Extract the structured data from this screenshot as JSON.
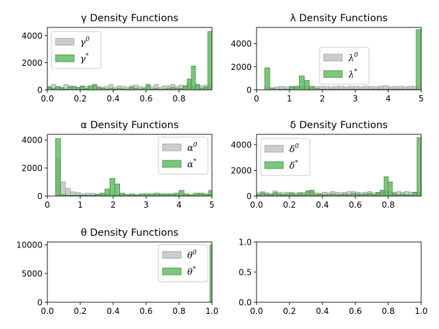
{
  "chart_data": [
    {
      "type": "bar",
      "greek": "γ",
      "title": "γ Density Functions",
      "xlim": [
        0,
        1
      ],
      "ylim": [
        0,
        4600
      ],
      "xticks": [
        0.0,
        0.2,
        0.4,
        0.6,
        0.8
      ],
      "xtick_labels": [
        "0.0",
        "0.2",
        "0.4",
        "0.6",
        "0.8"
      ],
      "yticks": [
        0,
        2000,
        4000
      ],
      "ytick_labels": [
        "0",
        "2000",
        "4000"
      ],
      "bin_width": 0.025,
      "legend_position": "upper-left",
      "series": [
        {
          "name": "γ0",
          "label_base": "γ",
          "label_sup": "0",
          "color": "#bfbfbf",
          "edge": "#a0a0a0",
          "x": [
            0.0,
            0.025,
            0.05,
            0.075,
            0.1,
            0.125,
            0.15,
            0.175,
            0.2,
            0.225,
            0.25,
            0.275,
            0.3,
            0.325,
            0.35,
            0.375,
            0.4,
            0.425,
            0.45,
            0.475,
            0.5,
            0.525,
            0.55,
            0.575,
            0.6,
            0.625,
            0.65,
            0.675,
            0.7,
            0.725,
            0.75,
            0.775,
            0.8,
            0.825,
            0.85,
            0.875,
            0.9,
            0.925,
            0.95,
            0.975
          ],
          "values": [
            250,
            400,
            250,
            200,
            400,
            300,
            250,
            200,
            300,
            250,
            200,
            300,
            250,
            200,
            250,
            400,
            200,
            300,
            250,
            200,
            300,
            350,
            250,
            200,
            300,
            250,
            400,
            200,
            300,
            300,
            400,
            250,
            350,
            300,
            450,
            300,
            400,
            300,
            350,
            300
          ]
        },
        {
          "name": "γ*",
          "label_base": "γ",
          "label_sup": "*",
          "color": "#5cb85c",
          "edge": "#3d8b3d",
          "x": [
            0.0,
            0.025,
            0.05,
            0.075,
            0.1,
            0.125,
            0.15,
            0.175,
            0.2,
            0.225,
            0.25,
            0.275,
            0.3,
            0.325,
            0.35,
            0.375,
            0.4,
            0.425,
            0.45,
            0.475,
            0.5,
            0.525,
            0.55,
            0.575,
            0.6,
            0.625,
            0.65,
            0.675,
            0.7,
            0.725,
            0.75,
            0.775,
            0.8,
            0.825,
            0.85,
            0.875,
            0.9,
            0.925,
            0.95,
            0.975
          ],
          "values": [
            200,
            100,
            250,
            150,
            50,
            200,
            250,
            150,
            250,
            100,
            300,
            400,
            150,
            100,
            50,
            100,
            50,
            100,
            50,
            50,
            200,
            100,
            50,
            100,
            400,
            50,
            100,
            50,
            50,
            100,
            150,
            100,
            100,
            300,
            800,
            1750,
            400,
            100,
            200,
            4300
          ]
        }
      ]
    },
    {
      "type": "bar",
      "greek": "λ",
      "title": "λ Density Functions",
      "xlim": [
        0,
        5
      ],
      "ylim": [
        0,
        5400
      ],
      "xticks": [
        0,
        1,
        2,
        3,
        4,
        5
      ],
      "xtick_labels": [
        "0",
        "1",
        "2",
        "3",
        "4",
        "5"
      ],
      "yticks": [
        0,
        2000,
        4000
      ],
      "ytick_labels": [
        "0",
        "2000",
        "4000"
      ],
      "bin_width": 0.15,
      "legend_position": "center",
      "series": [
        {
          "name": "λ0",
          "label_base": "λ",
          "label_sup": "0",
          "color": "#bfbfbf",
          "edge": "#a0a0a0",
          "x": [
            0.25,
            0.4,
            0.55,
            0.7,
            0.85,
            1.0,
            1.15,
            1.3,
            1.45,
            1.6,
            1.75,
            1.9,
            2.05,
            2.2,
            2.35,
            2.5,
            2.65,
            2.8,
            2.95,
            3.1,
            3.25,
            3.4,
            3.55,
            3.7,
            3.85,
            4.0,
            4.15,
            4.3,
            4.45,
            4.6,
            4.75
          ],
          "values": [
            250,
            200,
            250,
            300,
            250,
            300,
            250,
            300,
            350,
            300,
            250,
            300,
            300,
            250,
            300,
            300,
            250,
            300,
            300,
            250,
            300,
            300,
            250,
            300,
            350,
            250,
            300,
            300,
            250,
            300,
            300
          ]
        },
        {
          "name": "λ*",
          "label_base": "λ",
          "label_sup": "*",
          "color": "#5cb85c",
          "edge": "#3d8b3d",
          "x": [
            0.25,
            0.4,
            0.55,
            0.7,
            0.85,
            1.0,
            1.15,
            1.3,
            1.45,
            1.6,
            1.75,
            1.9,
            2.05,
            2.2,
            2.35,
            2.5,
            2.65,
            2.8,
            2.95,
            3.1,
            3.25,
            3.4,
            3.55,
            3.7,
            3.85,
            4.0,
            4.15,
            4.3,
            4.45,
            4.6,
            4.75,
            4.85
          ],
          "values": [
            1900,
            100,
            50,
            50,
            50,
            250,
            300,
            1200,
            800,
            300,
            100,
            50,
            50,
            50,
            50,
            50,
            50,
            50,
            50,
            50,
            50,
            50,
            50,
            50,
            50,
            50,
            50,
            50,
            50,
            50,
            50,
            5200
          ]
        }
      ]
    },
    {
      "type": "bar",
      "greek": "α",
      "title": "α Density Functions",
      "xlim": [
        0,
        5
      ],
      "ylim": [
        0,
        4400
      ],
      "xticks": [
        0,
        1,
        2,
        3,
        4,
        5
      ],
      "xtick_labels": [
        "0",
        "1",
        "2",
        "3",
        "4",
        "5"
      ],
      "yticks": [
        0,
        2000,
        4000
      ],
      "ytick_labels": [
        "0",
        "2000",
        "4000"
      ],
      "bin_width": 0.15,
      "legend_position": "upper-right",
      "series": [
        {
          "name": "α0",
          "label_base": "α",
          "label_sup": "0",
          "color": "#bfbfbf",
          "edge": "#a0a0a0",
          "x": [
            0.25,
            0.4,
            0.55,
            0.7,
            0.85,
            1.0,
            1.15,
            1.3,
            1.45,
            1.6,
            1.75,
            1.9,
            2.05,
            2.2,
            2.35,
            2.5,
            2.65,
            2.8,
            2.95,
            3.1,
            3.25,
            3.4,
            3.55,
            3.7,
            3.85,
            4.0,
            4.15,
            4.3,
            4.45,
            4.6,
            4.75,
            4.9
          ],
          "values": [
            2600,
            1000,
            550,
            300,
            250,
            150,
            200,
            200,
            150,
            200,
            150,
            100,
            100,
            150,
            100,
            100,
            100,
            150,
            100,
            100,
            100,
            150,
            100,
            100,
            100,
            150,
            100,
            100,
            100,
            150,
            100,
            100
          ]
        },
        {
          "name": "α*",
          "label_base": "α",
          "label_sup": "*",
          "color": "#5cb85c",
          "edge": "#3d8b3d",
          "x": [
            0.25,
            0.4,
            0.55,
            0.7,
            0.85,
            1.0,
            1.15,
            1.3,
            1.45,
            1.6,
            1.75,
            1.9,
            2.05,
            2.2,
            2.35,
            2.5,
            2.65,
            2.8,
            2.95,
            3.1,
            3.25,
            3.4,
            3.55,
            3.7,
            3.85,
            4.0,
            4.15,
            4.3,
            4.45,
            4.6,
            4.75,
            4.9
          ],
          "values": [
            4100,
            100,
            50,
            50,
            50,
            50,
            50,
            50,
            100,
            200,
            500,
            1250,
            850,
            200,
            100,
            150,
            100,
            150,
            150,
            150,
            200,
            150,
            150,
            150,
            200,
            400,
            150,
            100,
            200,
            200,
            150,
            400
          ]
        }
      ]
    },
    {
      "type": "bar",
      "greek": "δ",
      "title": "δ Density Functions",
      "xlim": [
        0,
        1
      ],
      "ylim": [
        0,
        4800
      ],
      "xticks": [
        0.0,
        0.2,
        0.4,
        0.6,
        0.8
      ],
      "xtick_labels": [
        "0.0",
        "0.2",
        "0.4",
        "0.6",
        "0.8"
      ],
      "yticks": [
        0,
        2000,
        4000
      ],
      "ytick_labels": [
        "0",
        "2000",
        "4000"
      ],
      "bin_width": 0.025,
      "legend_position": "upper-left",
      "series": [
        {
          "name": "δ0",
          "label_base": "δ",
          "label_sup": "0",
          "color": "#bfbfbf",
          "edge": "#a0a0a0",
          "x": [
            0.0,
            0.025,
            0.05,
            0.075,
            0.1,
            0.125,
            0.15,
            0.175,
            0.2,
            0.225,
            0.25,
            0.275,
            0.3,
            0.325,
            0.35,
            0.375,
            0.4,
            0.425,
            0.45,
            0.475,
            0.5,
            0.525,
            0.55,
            0.575,
            0.6,
            0.625,
            0.65,
            0.675,
            0.7,
            0.725,
            0.75,
            0.775,
            0.8,
            0.825,
            0.85,
            0.875,
            0.9,
            0.925,
            0.95,
            0.975
          ],
          "values": [
            250,
            350,
            250,
            200,
            400,
            300,
            250,
            300,
            300,
            250,
            250,
            300,
            400,
            350,
            250,
            200,
            300,
            250,
            350,
            300,
            250,
            300,
            350,
            350,
            300,
            250,
            300,
            350,
            250,
            300,
            300,
            350,
            300,
            300,
            350,
            300,
            350,
            300,
            250,
            300
          ]
        },
        {
          "name": "δ*",
          "label_base": "δ",
          "label_sup": "*",
          "color": "#5cb85c",
          "edge": "#3d8b3d",
          "x": [
            0.0,
            0.025,
            0.05,
            0.075,
            0.1,
            0.125,
            0.15,
            0.175,
            0.2,
            0.225,
            0.25,
            0.275,
            0.3,
            0.325,
            0.35,
            0.375,
            0.4,
            0.425,
            0.45,
            0.475,
            0.5,
            0.525,
            0.55,
            0.575,
            0.6,
            0.625,
            0.65,
            0.675,
            0.7,
            0.725,
            0.75,
            0.775,
            0.8,
            0.825,
            0.85,
            0.875,
            0.9,
            0.925,
            0.95,
            0.975
          ],
          "values": [
            100,
            250,
            150,
            100,
            250,
            150,
            100,
            150,
            200,
            100,
            250,
            150,
            400,
            450,
            100,
            150,
            100,
            100,
            150,
            100,
            100,
            150,
            100,
            200,
            150,
            100,
            150,
            200,
            100,
            250,
            450,
            1500,
            1100,
            200,
            100,
            150,
            100,
            100,
            300,
            4550
          ]
        }
      ]
    },
    {
      "type": "bar",
      "greek": "θ",
      "title": "θ Density Functions",
      "xlim": [
        0,
        1
      ],
      "ylim": [
        0,
        10500
      ],
      "xticks": [
        0.0,
        0.2,
        0.4,
        0.6,
        0.8,
        1.0
      ],
      "xtick_labels": [
        "0.0",
        "0.2",
        "0.4",
        "0.6",
        "0.8",
        "1.0"
      ],
      "yticks": [
        0,
        5000,
        10000
      ],
      "ytick_labels": [
        "0",
        "5000",
        "10000"
      ],
      "bin_width": 0.012,
      "legend_position": "upper-right",
      "series": [
        {
          "name": "θ0",
          "label_base": "θ",
          "label_sup": "0",
          "color": "#bfbfbf",
          "edge": "#a0a0a0",
          "x": [
            0.988
          ],
          "values": [
            100
          ]
        },
        {
          "name": "θ*",
          "label_base": "θ",
          "label_sup": "*",
          "color": "#5cb85c",
          "edge": "#3d8b3d",
          "x": [
            0.988
          ],
          "values": [
            10000
          ]
        }
      ]
    },
    {
      "type": "bar",
      "greek": "",
      "title": "",
      "xlim": [
        0,
        1
      ],
      "ylim": [
        0,
        1
      ],
      "xticks": [
        0.0,
        0.2,
        0.4,
        0.6,
        0.8,
        1.0
      ],
      "xtick_labels": [
        "0.0",
        "0.2",
        "0.4",
        "0.6",
        "0.8",
        "1.0"
      ],
      "yticks": [
        0.0,
        0.5,
        1.0
      ],
      "ytick_labels": [
        "0.0",
        "0.5",
        "1.0"
      ],
      "bin_width": 0,
      "legend_position": "",
      "series": []
    }
  ]
}
